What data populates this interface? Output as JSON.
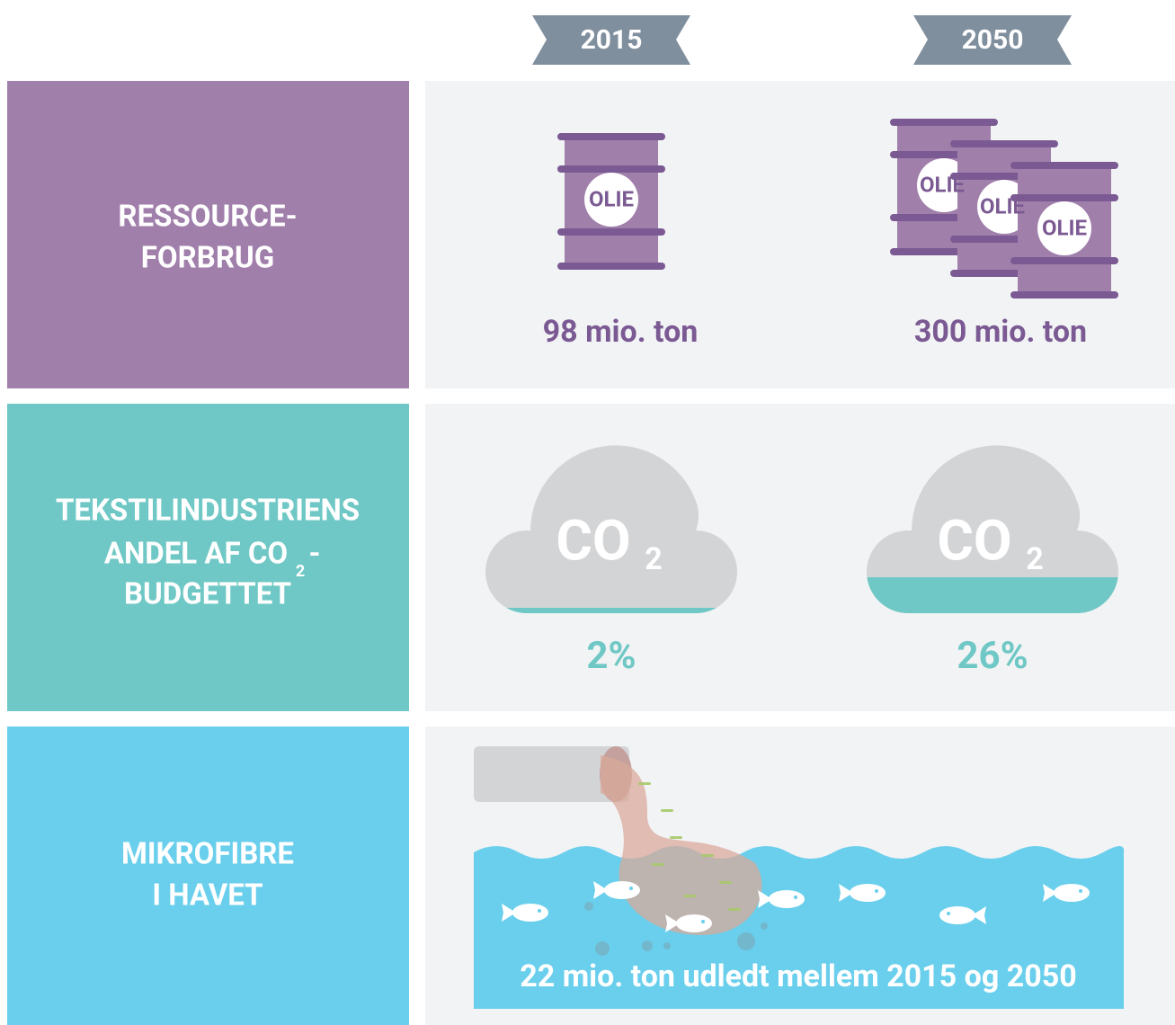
{
  "header": {
    "years": [
      "2015",
      "2050"
    ]
  },
  "rows": [
    {
      "label_lines": [
        "RESSOURCE-",
        "FORBRUG"
      ],
      "barrel_text": "OLIE",
      "values": [
        "98 mio. ton",
        "300 mio. ton"
      ]
    },
    {
      "label_lines": [
        "TEKSTILINDUSTRIENS",
        "ANDEL AF CO",
        "2",
        "-",
        "BUDGETTET"
      ],
      "cloud_text": "CO",
      "cloud_sub": "2",
      "values": [
        "2%",
        "26%"
      ]
    },
    {
      "label_lines": [
        "MIKROFIBRE",
        "I HAVET"
      ],
      "value": "22 mio. ton udledt mellem 2015 og 2050"
    }
  ]
}
